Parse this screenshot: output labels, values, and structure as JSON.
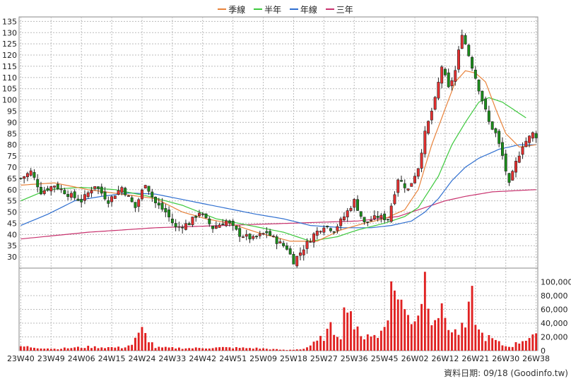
{
  "chart_data": {
    "type": "candlestick",
    "legend": [
      {
        "name": "季線",
        "color": "#e8823a"
      },
      {
        "name": "半年",
        "color": "#3dc93d"
      },
      {
        "name": "年線",
        "color": "#2f6fd0"
      },
      {
        "name": "三年",
        "color": "#c8326e"
      }
    ],
    "x_ticks": [
      "23W40",
      "23W49",
      "24W06",
      "24W15",
      "24W24",
      "24W33",
      "24W42",
      "24W51",
      "25W09",
      "25W18",
      "25W27",
      "25W36",
      "25W45",
      "26W02",
      "26W12",
      "26W21",
      "26W30",
      "26W38"
    ],
    "x_tick_index": [
      0,
      9,
      18,
      27,
      36,
      45,
      54,
      63,
      72,
      81,
      90,
      99,
      108,
      117,
      126,
      135,
      144,
      153
    ],
    "price_ylim": [
      25,
      137
    ],
    "price_yticks": [
      30,
      35,
      40,
      45,
      50,
      55,
      60,
      65,
      70,
      75,
      80,
      85,
      90,
      95,
      100,
      105,
      110,
      115,
      120,
      125,
      130,
      135
    ],
    "volume_ylim": [
      0,
      120000
    ],
    "volume_yticks": [
      "0",
      "20,000",
      "40,000",
      "60,000",
      "80,000",
      "100,000"
    ],
    "volume_ytick_values": [
      0,
      20000,
      40000,
      60000,
      80000,
      100000
    ],
    "close_keypoints": [
      [
        0,
        65
      ],
      [
        3,
        68
      ],
      [
        6,
        59
      ],
      [
        10,
        62
      ],
      [
        14,
        58
      ],
      [
        18,
        55
      ],
      [
        22,
        62
      ],
      [
        26,
        55
      ],
      [
        30,
        61
      ],
      [
        34,
        52
      ],
      [
        37,
        63
      ],
      [
        40,
        54
      ],
      [
        43,
        50
      ],
      [
        46,
        43
      ],
      [
        50,
        45
      ],
      [
        53,
        50
      ],
      [
        57,
        43
      ],
      [
        61,
        46
      ],
      [
        65,
        40
      ],
      [
        69,
        38
      ],
      [
        73,
        41
      ],
      [
        76,
        37
      ],
      [
        79,
        34
      ],
      [
        81,
        28
      ],
      [
        84,
        34
      ],
      [
        87,
        40
      ],
      [
        90,
        44
      ],
      [
        93,
        42
      ],
      [
        96,
        48
      ],
      [
        99,
        55
      ],
      [
        102,
        45
      ],
      [
        106,
        48
      ],
      [
        109,
        47
      ],
      [
        112,
        65
      ],
      [
        115,
        60
      ],
      [
        118,
        70
      ],
      [
        120,
        85
      ],
      [
        123,
        100
      ],
      [
        125,
        115
      ],
      [
        127,
        105
      ],
      [
        129,
        113
      ],
      [
        131,
        130
      ],
      [
        133,
        120
      ],
      [
        135,
        110
      ],
      [
        137,
        100
      ],
      [
        139,
        90
      ],
      [
        141,
        85
      ],
      [
        143,
        75
      ],
      [
        145,
        62
      ],
      [
        147,
        72
      ],
      [
        149,
        80
      ],
      [
        152,
        85
      ],
      [
        153,
        84
      ]
    ],
    "ma_q_keypoints": [
      [
        0,
        62
      ],
      [
        10,
        63
      ],
      [
        20,
        60
      ],
      [
        30,
        58
      ],
      [
        40,
        56
      ],
      [
        48,
        50
      ],
      [
        55,
        47
      ],
      [
        62,
        45
      ],
      [
        70,
        41
      ],
      [
        80,
        37
      ],
      [
        88,
        37
      ],
      [
        95,
        42
      ],
      [
        102,
        45
      ],
      [
        108,
        47
      ],
      [
        114,
        51
      ],
      [
        118,
        60
      ],
      [
        122,
        80
      ],
      [
        126,
        96
      ],
      [
        129,
        108
      ],
      [
        132,
        113
      ],
      [
        135,
        112
      ],
      [
        138,
        108
      ],
      [
        141,
        96
      ],
      [
        144,
        85
      ],
      [
        148,
        79
      ],
      [
        153,
        80
      ]
    ],
    "ma_h_keypoints": [
      [
        0,
        55
      ],
      [
        8,
        60
      ],
      [
        18,
        61
      ],
      [
        28,
        60
      ],
      [
        38,
        57
      ],
      [
        48,
        53
      ],
      [
        58,
        47
      ],
      [
        68,
        44
      ],
      [
        78,
        41
      ],
      [
        86,
        37
      ],
      [
        94,
        39
      ],
      [
        100,
        42
      ],
      [
        108,
        45
      ],
      [
        114,
        48
      ],
      [
        118,
        52
      ],
      [
        124,
        66
      ],
      [
        128,
        80
      ],
      [
        132,
        90
      ],
      [
        136,
        99
      ],
      [
        139,
        101
      ],
      [
        143,
        99
      ],
      [
        147,
        95
      ],
      [
        150,
        92
      ]
    ],
    "ma_y_keypoints": [
      [
        0,
        44
      ],
      [
        8,
        49
      ],
      [
        16,
        55
      ],
      [
        24,
        57
      ],
      [
        32,
        58.5
      ],
      [
        40,
        58
      ],
      [
        50,
        55
      ],
      [
        60,
        52
      ],
      [
        70,
        49
      ],
      [
        78,
        47
      ],
      [
        86,
        44
      ],
      [
        96,
        43
      ],
      [
        104,
        43
      ],
      [
        110,
        44
      ],
      [
        116,
        46
      ],
      [
        120,
        50
      ],
      [
        124,
        56
      ],
      [
        128,
        64
      ],
      [
        132,
        70
      ],
      [
        136,
        74
      ],
      [
        142,
        78
      ],
      [
        148,
        80
      ],
      [
        153,
        80
      ]
    ],
    "ma_3y_keypoints": [
      [
        0,
        38
      ],
      [
        20,
        41
      ],
      [
        40,
        43
      ],
      [
        60,
        44
      ],
      [
        80,
        45
      ],
      [
        100,
        46
      ],
      [
        112,
        48
      ],
      [
        120,
        52
      ],
      [
        126,
        55
      ],
      [
        132,
        57
      ],
      [
        140,
        59
      ],
      [
        153,
        60
      ]
    ],
    "volume_keypoints": [
      [
        0,
        7000
      ],
      [
        10,
        3000
      ],
      [
        20,
        6000
      ],
      [
        30,
        5000
      ],
      [
        33,
        10000
      ],
      [
        36,
        32000
      ],
      [
        40,
        5000
      ],
      [
        50,
        4000
      ],
      [
        60,
        5000
      ],
      [
        70,
        4000
      ],
      [
        79,
        1000
      ],
      [
        84,
        3000
      ],
      [
        88,
        14000
      ],
      [
        90,
        23000
      ],
      [
        92,
        35000
      ],
      [
        95,
        27000
      ],
      [
        97,
        90000
      ],
      [
        99,
        40000
      ],
      [
        101,
        20000
      ],
      [
        103,
        30000
      ],
      [
        106,
        20000
      ],
      [
        108,
        45000
      ],
      [
        110,
        95000
      ],
      [
        112,
        100000
      ],
      [
        114,
        60000
      ],
      [
        116,
        52000
      ],
      [
        118,
        62000
      ],
      [
        120,
        118000
      ],
      [
        122,
        60000
      ],
      [
        124,
        62000
      ],
      [
        126,
        55000
      ],
      [
        128,
        30000
      ],
      [
        130,
        30000
      ],
      [
        132,
        38000
      ],
      [
        134,
        82000
      ],
      [
        136,
        30000
      ],
      [
        138,
        22000
      ],
      [
        140,
        18000
      ],
      [
        142,
        12000
      ],
      [
        144,
        7000
      ],
      [
        146,
        8000
      ],
      [
        148,
        14000
      ],
      [
        150,
        20000
      ],
      [
        152,
        26000
      ],
      [
        153,
        22000
      ]
    ]
  },
  "footer": {
    "text": "資料日期: 09/18 (Goodinfo.tw)"
  }
}
